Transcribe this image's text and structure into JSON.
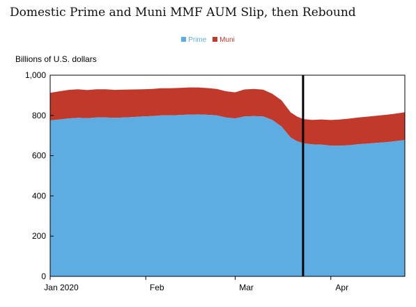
{
  "chart_data": {
    "type": "area",
    "stacked": true,
    "title": "Domestic Prime and Muni MMF AUM Slip, then Rebound",
    "units_label": "Billions of U.S. dollars",
    "legend_position": "top-center",
    "ylim": [
      0,
      1000
    ],
    "yticks": [
      0,
      200,
      400,
      600,
      800,
      "1,000"
    ],
    "xlim": [
      "2020-01-01",
      "2020-04-25"
    ],
    "xticks": [
      {
        "label": "Jan 2020",
        "date": "2020-01-01"
      },
      {
        "label": "Feb",
        "date": "2020-02-01"
      },
      {
        "label": "Mar",
        "date": "2020-03-01"
      },
      {
        "label": "Apr",
        "date": "2020-04-01"
      }
    ],
    "vertical_line_date": "2020-03-23",
    "colors": {
      "Prime": "#5dade2",
      "Muni": "#c0392b"
    },
    "x": [
      "2020-01-01",
      "2020-01-04",
      "2020-01-07",
      "2020-01-10",
      "2020-01-13",
      "2020-01-16",
      "2020-01-19",
      "2020-01-22",
      "2020-01-25",
      "2020-01-28",
      "2020-01-31",
      "2020-02-03",
      "2020-02-06",
      "2020-02-09",
      "2020-02-12",
      "2020-02-15",
      "2020-02-18",
      "2020-02-21",
      "2020-02-24",
      "2020-02-27",
      "2020-03-01",
      "2020-03-04",
      "2020-03-07",
      "2020-03-10",
      "2020-03-13",
      "2020-03-16",
      "2020-03-19",
      "2020-03-21",
      "2020-03-23",
      "2020-03-26",
      "2020-03-29",
      "2020-04-01",
      "2020-04-04",
      "2020-04-07",
      "2020-04-10",
      "2020-04-13",
      "2020-04-16",
      "2020-04-19",
      "2020-04-22",
      "2020-04-25"
    ],
    "series": [
      {
        "name": "Prime",
        "values": [
          775,
          780,
          785,
          788,
          786,
          790,
          790,
          788,
          790,
          792,
          795,
          797,
          800,
          800,
          802,
          804,
          805,
          803,
          800,
          790,
          785,
          795,
          797,
          795,
          778,
          745,
          690,
          672,
          662,
          656,
          655,
          650,
          650,
          652,
          657,
          660,
          664,
          667,
          672,
          678
        ]
      },
      {
        "name": "Muni",
        "values": [
          137,
          140,
          142,
          142,
          140,
          140,
          140,
          139,
          138,
          137,
          135,
          135,
          135,
          135,
          135,
          135,
          134,
          133,
          132,
          130,
          130,
          134,
          135,
          133,
          130,
          130,
          125,
          123,
          120,
          122,
          125,
          127,
          130,
          132,
          133,
          134,
          135,
          136,
          137,
          138
        ]
      }
    ]
  }
}
